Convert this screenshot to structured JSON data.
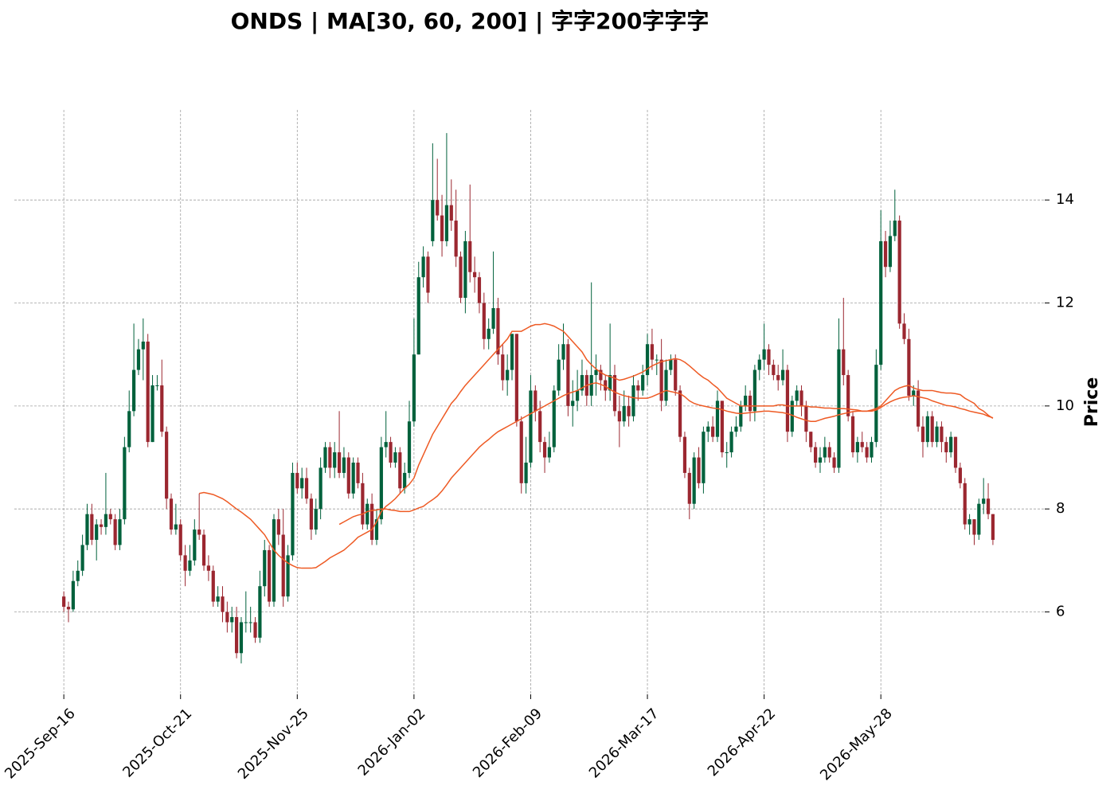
{
  "chart_data": {
    "type": "candlestick",
    "title": "ONDS  |  MA[30, 60, 200]  |  字字200字字字",
    "ylabel": "Price",
    "xlim": [
      -10.6,
      210.1
    ],
    "ylim": [
      4.4,
      15.75
    ],
    "yticks": [
      6,
      8,
      10,
      12,
      14
    ],
    "xticks": [
      {
        "value": 0,
        "label": "2025-Sep-16"
      },
      {
        "value": 25,
        "label": "2025-Oct-21"
      },
      {
        "value": 50,
        "label": "2025-Nov-25"
      },
      {
        "value": 75,
        "label": "2026-Jan-02"
      },
      {
        "value": 100,
        "label": "2026-Feb-09"
      },
      {
        "value": 125,
        "label": "2026-Mar-17"
      },
      {
        "value": 150,
        "label": "2026-Apr-22"
      },
      {
        "value": 175,
        "label": "2026-May-28"
      }
    ],
    "grid": true,
    "up_color": "#00613c",
    "down_color": "#9b2730",
    "open": [
      6.3,
      6.1,
      6.05,
      6.6,
      6.8,
      7.3,
      7.9,
      7.4,
      7.7,
      7.65,
      7.9,
      7.8,
      7.3,
      7.8,
      9.2,
      9.9,
      10.7,
      11.1,
      11.25,
      9.3,
      10.4,
      10.4,
      9.5,
      8.2,
      7.6,
      7.7,
      7.1,
      6.8,
      7.0,
      7.6,
      7.5,
      6.9,
      6.8,
      6.2,
      6.3,
      6.0,
      5.8,
      5.9,
      5.2,
      5.8,
      5.8,
      5.8,
      5.5,
      6.5,
      7.2,
      6.2,
      7.8,
      7.5,
      6.3,
      7.1,
      8.7,
      8.4,
      8.6,
      8.2,
      7.6,
      8.0,
      8.8,
      9.2,
      8.8,
      9.1,
      8.7,
      9.0,
      8.3,
      8.9,
      8.5,
      7.7,
      8.1,
      7.4,
      7.8,
      9.2,
      9.3,
      8.9,
      9.1,
      8.4,
      8.7,
      9.7,
      11.0,
      12.5,
      12.9,
      13.2,
      14.0,
      13.7,
      13.2,
      13.9,
      13.6,
      12.9,
      12.1,
      13.2,
      12.6,
      12.5,
      12.0,
      11.3,
      11.5,
      11.9,
      11.0,
      10.5,
      10.7,
      11.4,
      9.7,
      8.5,
      8.9,
      10.3,
      9.9,
      9.3,
      9.0,
      9.2,
      10.3,
      10.9,
      11.2,
      10.0,
      10.1,
      10.3,
      10.6,
      10.2,
      10.6,
      10.7,
      10.5,
      10.3,
      10.6,
      9.9,
      9.7,
      10.0,
      9.8,
      10.4,
      10.3,
      10.6,
      11.2,
      10.9,
      10.9,
      10.1,
      10.7,
      10.9,
      10.3,
      9.4,
      8.7,
      8.1,
      9.0,
      8.5,
      9.5,
      9.6,
      9.4,
      10.1,
      9.1,
      9.1,
      9.5,
      9.6,
      10.0,
      10.2,
      9.9,
      10.7,
      10.9,
      11.1,
      10.8,
      10.6,
      10.5,
      10.7,
      9.5,
      10.1,
      10.3,
      10.0,
      9.5,
      9.2,
      8.9,
      9.0,
      9.2,
      9.0,
      8.8,
      11.1,
      10.6,
      9.8,
      9.1,
      9.3,
      9.2,
      9.0,
      9.3,
      10.8,
      13.2,
      12.7,
      13.3,
      13.6,
      11.6,
      11.3,
      10.2,
      10.3,
      9.6,
      9.3,
      9.8,
      9.3,
      9.6,
      9.3,
      9.1,
      9.4,
      8.8,
      8.5,
      7.7,
      7.8,
      7.5,
      8.1,
      8.2,
      7.9
    ],
    "high": [
      6.4,
      6.2,
      6.8,
      7.0,
      7.5,
      8.1,
      8.1,
      7.8,
      7.8,
      8.7,
      8.0,
      7.9,
      8.0,
      9.4,
      10.3,
      11.6,
      11.3,
      11.7,
      11.4,
      10.6,
      10.6,
      10.9,
      9.6,
      8.3,
      8.1,
      7.8,
      7.3,
      7.3,
      7.8,
      8.3,
      7.6,
      7.1,
      6.9,
      6.5,
      6.5,
      6.2,
      6.1,
      6.1,
      5.9,
      6.4,
      6.1,
      5.9,
      6.8,
      7.4,
      7.3,
      7.9,
      8.0,
      8.0,
      7.3,
      8.9,
      8.9,
      8.8,
      8.8,
      8.3,
      8.2,
      9.0,
      9.3,
      9.3,
      9.3,
      9.9,
      9.2,
      9.1,
      9.0,
      9.0,
      8.7,
      8.2,
      8.3,
      8.0,
      9.4,
      9.9,
      9.4,
      9.2,
      9.2,
      8.9,
      10.1,
      11.7,
      12.8,
      13.1,
      13.0,
      15.1,
      14.8,
      14.1,
      15.3,
      14.4,
      14.2,
      13.0,
      13.4,
      14.3,
      12.9,
      12.6,
      12.2,
      11.7,
      13.0,
      12.1,
      11.2,
      11.0,
      11.4,
      11.4,
      9.8,
      9.4,
      10.6,
      10.4,
      10.1,
      9.4,
      9.5,
      10.4,
      11.2,
      11.6,
      11.3,
      10.5,
      10.7,
      10.9,
      10.7,
      12.4,
      11.0,
      10.8,
      10.6,
      11.6,
      10.8,
      10.2,
      10.3,
      10.2,
      10.6,
      10.5,
      10.8,
      11.4,
      11.5,
      11.0,
      11.3,
      10.9,
      11.0,
      11.0,
      10.4,
      9.5,
      8.8,
      9.1,
      9.2,
      9.6,
      9.7,
      9.8,
      10.3,
      10.1,
      9.3,
      9.6,
      9.8,
      10.1,
      10.4,
      10.3,
      10.8,
      11.0,
      11.6,
      11.2,
      10.9,
      10.8,
      11.1,
      10.8,
      10.2,
      10.4,
      10.4,
      10.1,
      9.5,
      9.3,
      9.2,
      9.4,
      9.3,
      9.1,
      11.7,
      12.1,
      10.7,
      9.9,
      9.4,
      9.5,
      9.3,
      9.4,
      11.1,
      13.8,
      13.4,
      13.6,
      14.2,
      13.7,
      11.8,
      11.5,
      10.4,
      10.5,
      9.8,
      9.9,
      9.9,
      9.7,
      9.7,
      9.4,
      9.5,
      9.4,
      8.9,
      8.6,
      7.9,
      7.8,
      8.2,
      8.6,
      8.5,
      7.9
    ],
    "low": [
      6.0,
      5.8,
      6.0,
      6.5,
      6.7,
      7.2,
      7.3,
      7.0,
      7.5,
      7.5,
      7.7,
      7.2,
      7.2,
      7.7,
      9.1,
      9.8,
      10.6,
      10.5,
      9.2,
      9.3,
      10.3,
      9.4,
      8.0,
      7.5,
      7.5,
      7.0,
      6.5,
      6.7,
      6.9,
      7.4,
      6.8,
      6.6,
      6.1,
      6.1,
      5.8,
      5.6,
      5.6,
      5.1,
      5.0,
      5.6,
      5.6,
      5.4,
      5.4,
      6.3,
      6.1,
      6.1,
      7.3,
      6.1,
      6.2,
      7.0,
      8.3,
      8.2,
      8.1,
      7.4,
      7.5,
      7.8,
      8.7,
      8.6,
      8.6,
      8.6,
      8.6,
      8.2,
      8.2,
      8.4,
      7.6,
      7.6,
      7.3,
      7.3,
      7.7,
      9.0,
      8.8,
      8.8,
      8.3,
      8.3,
      8.6,
      9.6,
      11.0,
      12.3,
      12.0,
      13.1,
      13.6,
      12.9,
      13.1,
      13.4,
      12.7,
      12.0,
      11.8,
      12.4,
      12.2,
      11.8,
      11.1,
      11.1,
      11.4,
      10.8,
      10.3,
      10.2,
      10.5,
      9.6,
      8.3,
      8.3,
      8.8,
      9.7,
      9.1,
      8.7,
      8.9,
      9.1,
      10.2,
      10.7,
      9.8,
      9.6,
      9.9,
      10.2,
      10.0,
      10.0,
      10.2,
      10.3,
      10.1,
      10.1,
      9.8,
      9.2,
      9.6,
      9.6,
      9.7,
      10.1,
      10.2,
      10.4,
      10.7,
      10.6,
      9.9,
      10.0,
      10.6,
      10.2,
      9.3,
      8.6,
      7.8,
      8.0,
      8.4,
      8.3,
      9.3,
      9.3,
      9.3,
      9.0,
      8.8,
      9.0,
      9.4,
      9.5,
      9.9,
      9.7,
      9.7,
      10.5,
      10.7,
      10.6,
      10.5,
      10.3,
      10.4,
      9.3,
      9.4,
      10.0,
      9.8,
      9.3,
      9.1,
      8.8,
      8.7,
      8.9,
      8.9,
      8.7,
      8.7,
      10.4,
      9.7,
      9.0,
      8.9,
      9.1,
      8.9,
      8.9,
      9.2,
      10.7,
      12.5,
      12.6,
      13.2,
      11.5,
      11.2,
      10.1,
      10.0,
      9.5,
      9.0,
      9.2,
      9.2,
      9.2,
      9.1,
      8.9,
      9.0,
      8.7,
      8.4,
      7.6,
      7.5,
      7.3,
      7.4,
      7.9,
      7.8,
      7.3
    ],
    "close": [
      6.1,
      6.05,
      6.6,
      6.8,
      7.3,
      7.9,
      7.4,
      7.7,
      7.65,
      7.9,
      7.8,
      7.3,
      7.8,
      9.2,
      9.9,
      10.7,
      11.1,
      11.25,
      9.3,
      10.4,
      10.4,
      9.5,
      8.2,
      7.6,
      7.7,
      7.1,
      6.8,
      7.0,
      7.6,
      7.5,
      6.9,
      6.8,
      6.2,
      6.3,
      6.0,
      5.8,
      5.9,
      5.2,
      5.8,
      5.8,
      5.8,
      5.5,
      6.5,
      7.2,
      6.2,
      7.8,
      7.5,
      6.3,
      7.1,
      8.7,
      8.4,
      8.6,
      8.2,
      7.6,
      8.0,
      8.8,
      9.2,
      8.8,
      9.1,
      8.7,
      9.0,
      8.3,
      8.9,
      8.5,
      7.7,
      8.1,
      7.4,
      7.8,
      9.2,
      9.3,
      8.9,
      9.1,
      8.4,
      8.7,
      9.7,
      11.0,
      12.5,
      12.9,
      12.2,
      14.0,
      13.7,
      13.2,
      13.9,
      13.6,
      12.9,
      12.1,
      13.2,
      12.6,
      12.5,
      12.0,
      11.3,
      11.5,
      11.9,
      11.0,
      10.5,
      10.7,
      11.4,
      9.7,
      8.5,
      8.9,
      10.3,
      9.9,
      9.3,
      9.0,
      9.2,
      10.3,
      10.9,
      11.2,
      10.0,
      10.1,
      10.3,
      10.6,
      10.2,
      10.6,
      10.7,
      10.5,
      10.3,
      10.6,
      9.9,
      9.7,
      10.0,
      9.8,
      10.4,
      10.3,
      10.6,
      11.2,
      10.9,
      10.9,
      10.1,
      10.7,
      10.9,
      10.3,
      9.4,
      8.7,
      8.1,
      9.0,
      8.5,
      9.5,
      9.6,
      9.4,
      10.1,
      9.1,
      9.1,
      9.5,
      9.6,
      10.0,
      10.2,
      9.9,
      10.7,
      10.9,
      11.1,
      10.8,
      10.6,
      10.5,
      10.7,
      9.5,
      10.1,
      10.3,
      10.0,
      9.5,
      9.2,
      8.9,
      9.0,
      9.2,
      9.0,
      8.8,
      11.1,
      10.6,
      9.8,
      9.1,
      9.3,
      9.2,
      9.0,
      9.3,
      10.8,
      13.2,
      12.7,
      13.3,
      13.6,
      11.6,
      11.3,
      10.2,
      10.3,
      9.6,
      9.3,
      9.8,
      9.3,
      9.6,
      9.3,
      9.1,
      9.4,
      8.8,
      8.5,
      7.7,
      7.8,
      7.5,
      8.1,
      8.2,
      7.9,
      7.4
    ],
    "series": [
      {
        "color": "#ee5a24",
        "values": [
          null,
          null,
          null,
          null,
          null,
          null,
          null,
          null,
          null,
          null,
          null,
          null,
          null,
          null,
          null,
          null,
          null,
          null,
          null,
          null,
          null,
          null,
          null,
          null,
          null,
          null,
          null,
          null,
          null,
          8.3,
          8.32,
          8.3,
          8.28,
          8.24,
          8.2,
          8.14,
          8.07,
          8.0,
          7.94,
          7.87,
          7.8,
          7.7,
          7.6,
          7.5,
          7.35,
          7.2,
          7.1,
          7.02,
          6.95,
          6.9,
          6.86,
          6.85,
          6.85,
          6.85,
          6.86,
          6.92,
          6.98,
          7.05,
          7.1,
          7.15,
          7.2,
          7.28,
          7.36,
          7.45,
          7.5,
          7.55,
          7.6,
          7.75,
          7.95,
          8.05,
          8.12,
          8.2,
          8.3,
          8.4,
          8.48,
          8.6,
          8.85,
          9.05,
          9.25,
          9.45,
          9.6,
          9.75,
          9.9,
          10.05,
          10.15,
          10.28,
          10.4,
          10.5,
          10.6,
          10.7,
          10.8,
          10.9,
          11.0,
          11.1,
          11.2,
          11.3,
          11.45,
          11.45,
          11.45,
          11.5,
          11.55,
          11.58,
          11.58,
          11.6,
          11.58,
          11.55,
          11.5,
          11.45,
          11.35,
          11.25,
          11.15,
          11.05,
          10.9,
          10.8,
          10.72,
          10.65,
          10.6,
          10.57,
          10.54,
          10.5,
          10.52,
          10.55,
          10.58,
          10.62,
          10.66,
          10.72,
          10.78,
          10.82,
          10.86,
          10.88,
          10.9,
          10.92,
          10.9,
          10.85,
          10.78,
          10.7,
          10.62,
          10.55,
          10.5,
          10.42,
          10.35,
          10.25,
          10.15,
          10.1,
          10.05,
          10.0,
          10.0,
          10.0,
          10.0,
          10.0,
          10.0,
          10.0,
          10.0,
          10.02,
          10.02,
          10.0,
          10.0,
          10.0,
          10.0,
          10.0,
          9.98,
          9.98,
          9.97,
          9.96,
          9.96,
          9.95,
          9.95,
          9.95,
          9.94,
          9.93,
          9.92,
          9.9,
          9.9,
          9.92,
          9.95,
          10.0,
          10.1,
          10.2,
          10.3,
          10.35,
          10.38,
          10.4,
          10.35,
          10.32,
          10.3,
          10.3,
          10.3,
          10.28,
          10.26,
          10.25,
          10.25,
          10.24,
          10.22,
          10.15,
          10.1,
          10.05,
          9.95,
          9.9,
          9.82,
          9.76
        ]
      },
      {
        "color": "#ee5a24",
        "values": [
          null,
          null,
          null,
          null,
          null,
          null,
          null,
          null,
          null,
          null,
          null,
          null,
          null,
          null,
          null,
          null,
          null,
          null,
          null,
          null,
          null,
          null,
          null,
          null,
          null,
          null,
          null,
          null,
          null,
          null,
          null,
          null,
          null,
          null,
          null,
          null,
          null,
          null,
          null,
          null,
          null,
          null,
          null,
          null,
          null,
          null,
          null,
          null,
          null,
          null,
          null,
          null,
          null,
          null,
          null,
          null,
          null,
          null,
          null,
          7.7,
          7.75,
          7.8,
          7.85,
          7.88,
          7.9,
          7.95,
          7.97,
          7.98,
          8.0,
          8.0,
          7.98,
          7.97,
          7.95,
          7.95,
          7.95,
          7.98,
          8.02,
          8.05,
          8.12,
          8.18,
          8.25,
          8.35,
          8.47,
          8.6,
          8.7,
          8.8,
          8.9,
          9.0,
          9.1,
          9.2,
          9.28,
          9.35,
          9.43,
          9.5,
          9.55,
          9.6,
          9.65,
          9.7,
          9.75,
          9.8,
          9.85,
          9.9,
          9.95,
          10.0,
          10.05,
          10.1,
          10.15,
          10.2,
          10.24,
          10.27,
          10.3,
          10.35,
          10.4,
          10.43,
          10.45,
          10.42,
          10.38,
          10.32,
          10.27,
          10.23,
          10.2,
          10.18,
          10.16,
          10.15,
          10.15,
          10.15,
          10.18,
          10.22,
          10.26,
          10.3,
          10.28,
          10.26,
          10.24,
          10.18,
          10.1,
          10.05,
          10.02,
          10.0,
          9.98,
          9.96,
          9.95,
          9.93,
          9.9,
          9.88,
          9.86,
          9.85,
          9.86,
          9.87,
          9.88,
          9.89,
          9.9,
          9.9,
          9.89,
          9.88,
          9.87,
          9.85,
          9.82,
          9.78,
          9.75,
          9.72,
          9.7,
          9.7,
          9.73,
          9.76,
          9.78,
          9.8,
          9.83,
          9.85,
          9.87,
          9.89,
          9.9,
          9.9,
          9.9,
          9.9,
          9.92,
          9.97,
          10.03,
          10.08,
          10.12,
          10.15,
          10.17,
          10.18,
          10.2,
          10.18,
          10.16,
          10.14,
          10.1,
          10.07,
          10.04,
          10.01,
          10.0,
          9.98,
          9.95,
          9.93,
          9.9,
          9.88,
          9.86,
          9.84,
          9.8,
          9.77
        ]
      }
    ]
  }
}
